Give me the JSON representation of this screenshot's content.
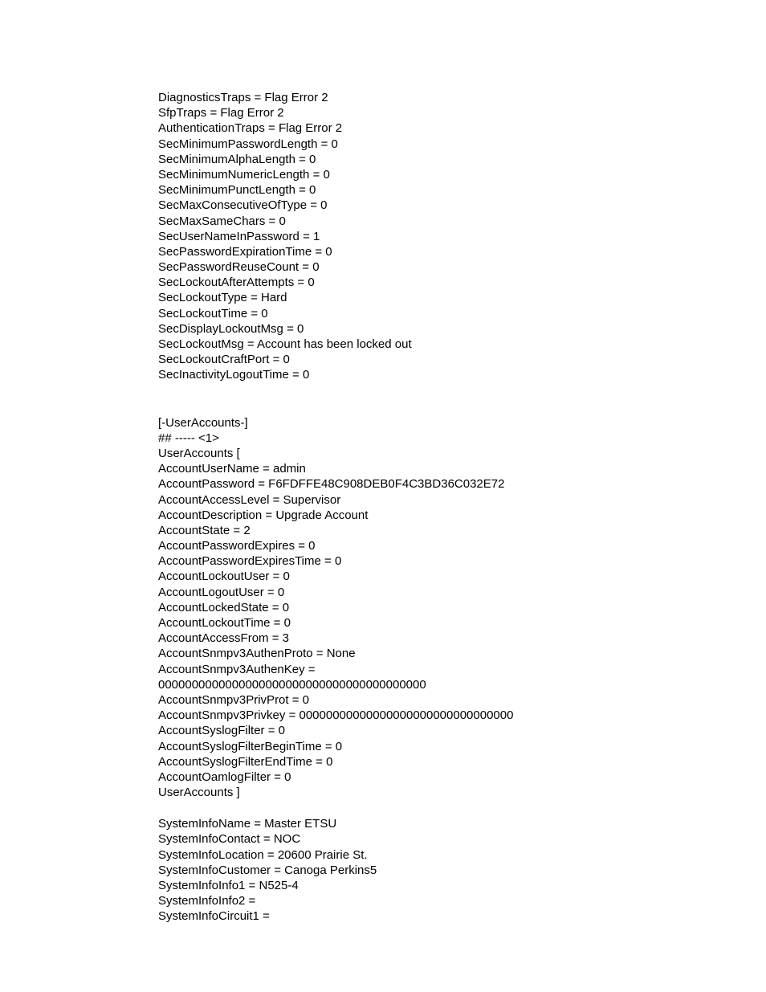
{
  "lines": [
    "DiagnosticsTraps = Flag Error 2",
    "SfpTraps = Flag Error 2",
    "AuthenticationTraps = Flag Error 2",
    "SecMinimumPasswordLength = 0",
    "SecMinimumAlphaLength = 0",
    "SecMinimumNumericLength = 0",
    "SecMinimumPunctLength = 0",
    "SecMaxConsecutiveOfType = 0",
    "SecMaxSameChars = 0",
    "SecUserNameInPassword = 1",
    "SecPasswordExpirationTime = 0",
    "SecPasswordReuseCount = 0",
    "SecLockoutAfterAttempts = 0",
    "SecLockoutType = Hard",
    "SecLockoutTime = 0",
    "SecDisplayLockoutMsg = 0",
    "SecLockoutMsg = Account has been locked out",
    "SecLockoutCraftPort = 0",
    "SecInactivityLogoutTime = 0"
  ],
  "lines2": [
    "[-UserAccounts-]",
    "## ----- <1>",
    "UserAccounts [",
    "AccountUserName = admin",
    "AccountPassword = F6FDFFE48C908DEB0F4C3BD36C032E72",
    "AccountAccessLevel = Supervisor",
    "AccountDescription = Upgrade Account",
    "AccountState = 2",
    "AccountPasswordExpires = 0",
    "AccountPasswordExpiresTime = 0",
    "AccountLockoutUser = 0",
    "AccountLogoutUser = 0",
    "AccountLockedState = 0",
    "AccountLockoutTime = 0",
    "AccountAccessFrom = 3",
    "AccountSnmpv3AuthenProto = None",
    "AccountSnmpv3AuthenKey =",
    "0000000000000000000000000000000000000000",
    "AccountSnmpv3PrivProt = 0",
    "AccountSnmpv3Privkey = 00000000000000000000000000000000",
    "AccountSyslogFilter = 0",
    "AccountSyslogFilterBeginTime = 0",
    "AccountSyslogFilterEndTime = 0",
    "AccountOamlogFilter = 0",
    "UserAccounts ]"
  ],
  "lines3": [
    "SystemInfoName = Master ETSU",
    "SystemInfoContact = NOC",
    "SystemInfoLocation = 20600 Prairie St.",
    "SystemInfoCustomer = Canoga Perkins5",
    "SystemInfoInfo1 = N525-4",
    "SystemInfoInfo2 =",
    "SystemInfoCircuit1 ="
  ]
}
